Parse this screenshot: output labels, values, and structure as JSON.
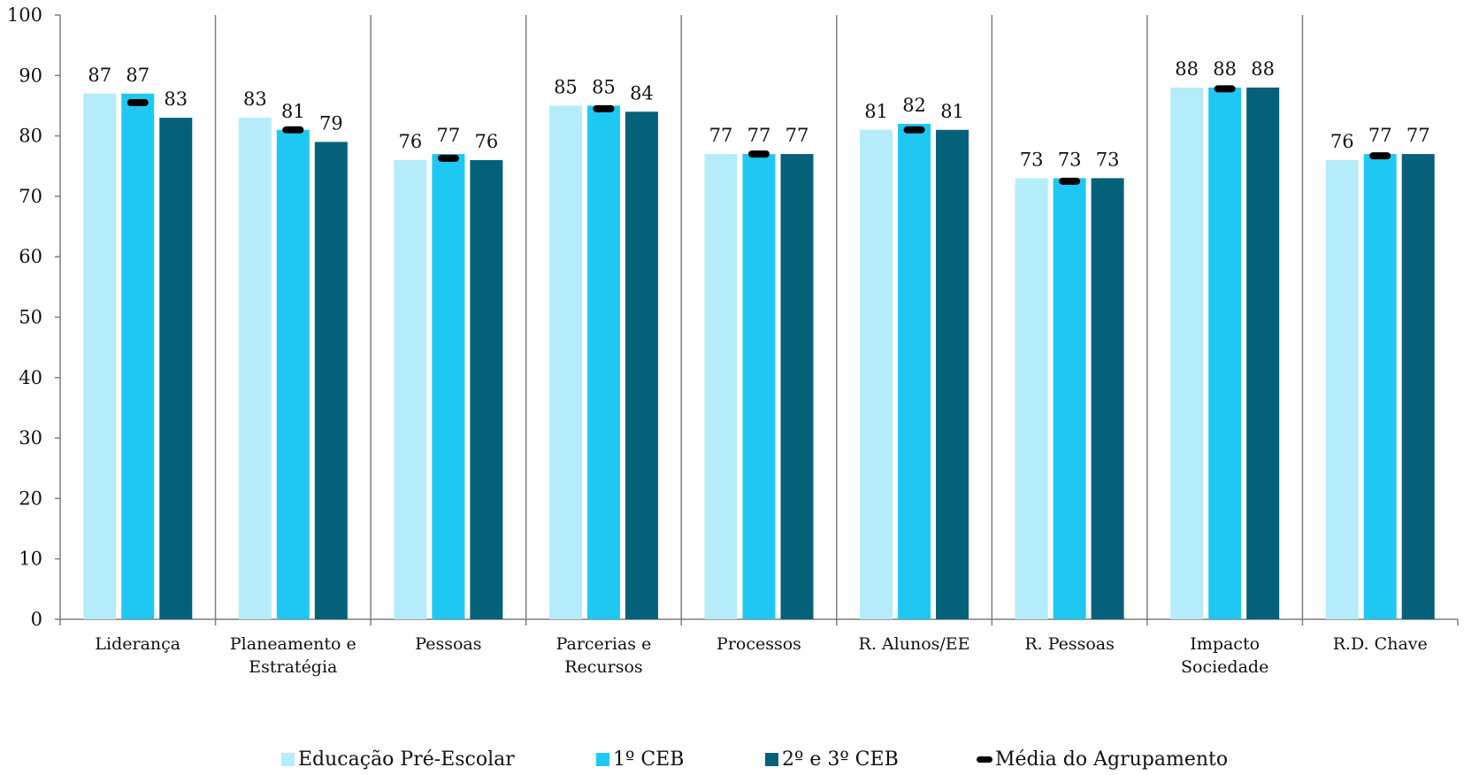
{
  "chart_data": {
    "type": "bar",
    "title": "",
    "xlabel": "",
    "ylabel": "",
    "ylim": [
      0,
      100
    ],
    "yticks": [
      0,
      10,
      20,
      30,
      40,
      50,
      60,
      70,
      80,
      90,
      100
    ],
    "grid": false,
    "legend_position": "bottom",
    "categories": [
      [
        "Liderança"
      ],
      [
        "Planeamento e",
        "Estratégia"
      ],
      [
        "Pessoas"
      ],
      [
        "Parcerias e",
        "Recursos"
      ],
      [
        "Processos"
      ],
      [
        "R. Alunos/EE"
      ],
      [
        "R. Pessoas"
      ],
      [
        "Impacto",
        "Sociedade"
      ],
      [
        "R.D. Chave"
      ]
    ],
    "series": [
      {
        "name": "Educação Pré-Escolar",
        "color": "#b5ecfa",
        "values": [
          87,
          83,
          76,
          85,
          77,
          81,
          73,
          88,
          76
        ]
      },
      {
        "name": "1º CEB",
        "color": "#1fc8f3",
        "values": [
          87,
          81,
          77,
          85,
          77,
          82,
          73,
          88,
          77
        ]
      },
      {
        "name": "2º e 3º CEB",
        "color": "#05607a",
        "values": [
          83,
          79,
          76,
          84,
          77,
          81,
          73,
          88,
          77
        ]
      }
    ],
    "average": {
      "name": "Média do Agrupamento",
      "color": "#000000",
      "values": [
        85.5,
        81,
        76.3,
        84.5,
        77,
        81,
        72.5,
        87.8,
        76.7
      ]
    }
  }
}
